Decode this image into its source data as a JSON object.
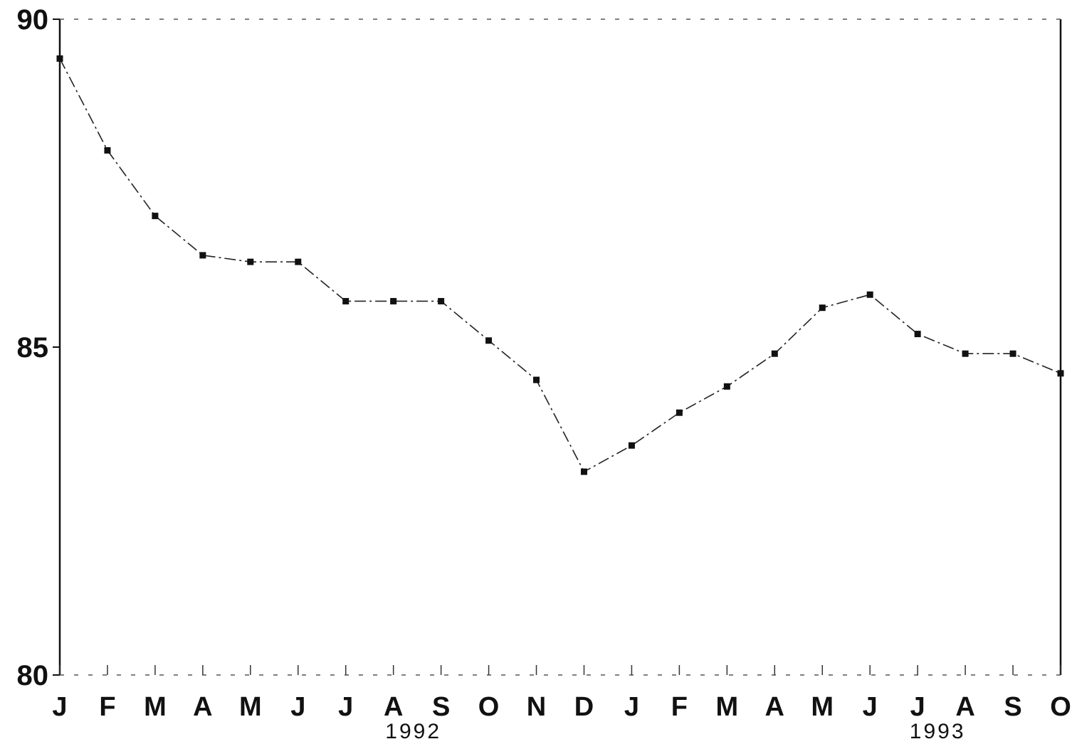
{
  "chart_data": {
    "type": "line",
    "title": "",
    "xlabel": "",
    "ylabel": "",
    "categories": [
      "J",
      "F",
      "M",
      "A",
      "M",
      "J",
      "J",
      "A",
      "S",
      "O",
      "N",
      "D",
      "J",
      "F",
      "M",
      "A",
      "M",
      "J",
      "J",
      "A",
      "S",
      "O"
    ],
    "year_labels": [
      {
        "label": "1992",
        "category_index": 7
      },
      {
        "label": "1993",
        "category_index": 18
      }
    ],
    "series": [
      {
        "values": [
          89.4,
          88.0,
          87.0,
          86.4,
          86.3,
          86.3,
          85.7,
          85.7,
          85.7,
          85.1,
          84.5,
          83.1,
          83.5,
          84.0,
          84.4,
          84.9,
          85.6,
          85.8,
          85.2,
          84.9,
          84.9,
          84.6
        ]
      }
    ],
    "y_ticks": [
      80,
      85,
      90
    ],
    "ylim": [
      80,
      90
    ],
    "grid": false,
    "line_color": "#222222"
  }
}
